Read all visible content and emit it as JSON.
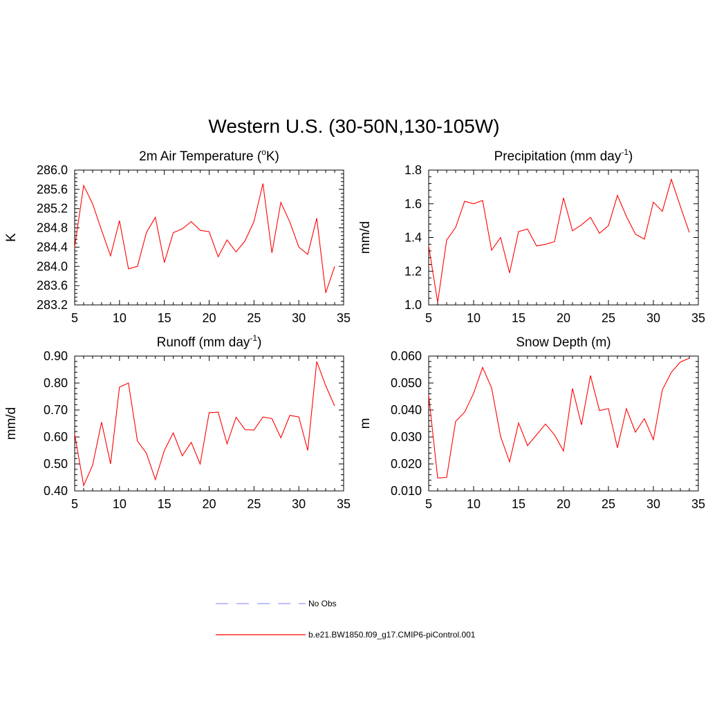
{
  "title": "Western U.S. (30-50N,130-105W)",
  "legend": {
    "placement": "bottom-center",
    "entries": [
      {
        "name": "No Obs",
        "color": "#9999ff",
        "dash": "dashed"
      },
      {
        "name": "b.e21.BW1850.f09_g17.CMIP6-piControl.001",
        "color": "#ff0000",
        "dash": "solid"
      }
    ]
  },
  "chart_data": [
    {
      "type": "line",
      "title": "2m Air Temperature (",
      "title_sup": "o",
      "title_end": "K)",
      "ylabel": "K",
      "xlim": [
        5,
        35
      ],
      "ylim": [
        283.2,
        286.0
      ],
      "xticks": [
        "5",
        "10",
        "15",
        "20",
        "25",
        "30",
        "35"
      ],
      "yticks": [
        "283.2",
        "283.6",
        "284.0",
        "284.4",
        "284.8",
        "285.2",
        "285.6",
        "286.0"
      ],
      "series": [
        {
          "color": "#ff0000",
          "x": [
            5,
            6,
            7,
            8,
            9,
            10,
            11,
            12,
            13,
            14,
            15,
            16,
            17,
            18,
            19,
            20,
            21,
            22,
            23,
            24,
            25,
            26,
            27,
            28,
            29,
            30,
            31,
            32,
            33,
            34
          ],
          "y": [
            284.4,
            285.68,
            285.3,
            284.75,
            284.22,
            284.95,
            283.95,
            284.0,
            284.7,
            285.02,
            284.08,
            284.7,
            284.78,
            284.93,
            284.75,
            284.72,
            284.2,
            284.55,
            284.3,
            284.53,
            284.93,
            285.72,
            284.28,
            285.33,
            284.92,
            284.4,
            284.25,
            285.0,
            283.45,
            284.0
          ]
        }
      ]
    },
    {
      "type": "line",
      "title": "Precipitation (mm day",
      "title_sup": "-1",
      "title_end": ")",
      "ylabel": "mm/d",
      "xlim": [
        5,
        35
      ],
      "ylim": [
        1.0,
        1.8
      ],
      "xticks": [
        "5",
        "10",
        "15",
        "20",
        "25",
        "30",
        "35"
      ],
      "yticks": [
        "1.0",
        "1.2",
        "1.4",
        "1.6",
        "1.8"
      ],
      "series": [
        {
          "color": "#ff0000",
          "x": [
            5,
            6,
            7,
            8,
            9,
            10,
            11,
            12,
            13,
            14,
            15,
            16,
            17,
            18,
            19,
            20,
            21,
            22,
            23,
            24,
            25,
            26,
            27,
            28,
            29,
            30,
            31,
            32,
            33,
            34
          ],
          "y": [
            1.35,
            1.015,
            1.385,
            1.46,
            1.615,
            1.6,
            1.62,
            1.325,
            1.4,
            1.19,
            1.435,
            1.45,
            1.35,
            1.36,
            1.375,
            1.635,
            1.44,
            1.475,
            1.52,
            1.425,
            1.47,
            1.65,
            1.525,
            1.42,
            1.39,
            1.61,
            1.555,
            1.745,
            1.585,
            1.43
          ]
        }
      ]
    },
    {
      "type": "line",
      "title": "Runoff (mm day",
      "title_sup": "-1",
      "title_end": ")",
      "ylabel": "mm/d",
      "xlim": [
        5,
        35
      ],
      "ylim": [
        0.4,
        0.9
      ],
      "xticks": [
        "5",
        "10",
        "15",
        "20",
        "25",
        "30",
        "35"
      ],
      "yticks": [
        "0.40",
        "0.50",
        "0.60",
        "0.70",
        "0.80",
        "0.90"
      ],
      "series": [
        {
          "color": "#ff0000",
          "x": [
            5,
            6,
            7,
            8,
            9,
            10,
            11,
            12,
            13,
            14,
            15,
            16,
            17,
            18,
            19,
            20,
            21,
            22,
            23,
            24,
            25,
            26,
            27,
            28,
            29,
            30,
            31,
            32,
            33,
            34
          ],
          "y": [
            0.61,
            0.42,
            0.495,
            0.655,
            0.5,
            0.785,
            0.8,
            0.585,
            0.54,
            0.442,
            0.55,
            0.615,
            0.53,
            0.58,
            0.5,
            0.69,
            0.692,
            0.575,
            0.673,
            0.627,
            0.626,
            0.674,
            0.668,
            0.597,
            0.68,
            0.674,
            0.55,
            0.88,
            0.79,
            0.715
          ]
        }
      ]
    },
    {
      "type": "line",
      "title": "Snow Depth (m)",
      "title_sup": "",
      "title_end": "",
      "ylabel": "m",
      "xlim": [
        5,
        35
      ],
      "ylim": [
        0.01,
        0.06
      ],
      "xticks": [
        "5",
        "10",
        "15",
        "20",
        "25",
        "30",
        "35"
      ],
      "yticks": [
        "0.010",
        "0.020",
        "0.030",
        "0.040",
        "0.050",
        "0.060"
      ],
      "series": [
        {
          "color": "#ff0000",
          "x": [
            5,
            6,
            7,
            8,
            9,
            10,
            11,
            12,
            13,
            14,
            15,
            16,
            17,
            18,
            19,
            20,
            21,
            22,
            23,
            24,
            25,
            26,
            27,
            28,
            29,
            30,
            31,
            32,
            33,
            34
          ],
          "y": [
            0.0455,
            0.0148,
            0.015,
            0.0358,
            0.0392,
            0.0462,
            0.0558,
            0.0482,
            0.0302,
            0.0208,
            0.0352,
            0.0268,
            0.0308,
            0.0348,
            0.0308,
            0.0248,
            0.048,
            0.0345,
            0.0528,
            0.0398,
            0.0405,
            0.026,
            0.0405,
            0.0318,
            0.0368,
            0.029,
            0.0475,
            0.054,
            0.0578,
            0.0592
          ]
        }
      ]
    }
  ]
}
